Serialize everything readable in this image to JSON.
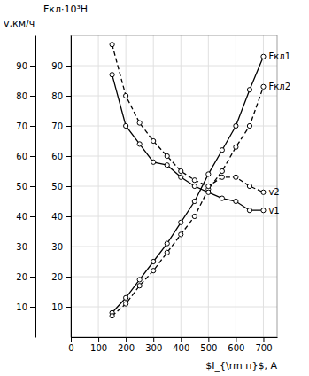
{
  "chart_data": {
    "type": "line",
    "x_label": "$I_{\\rm п}$, А",
    "y_label": "Fкл·10³H",
    "y2_label": "v,км/ч",
    "x": [
      150,
      200,
      250,
      300,
      350,
      400,
      450,
      500,
      550,
      600,
      650,
      700
    ],
    "series": [
      {
        "name": "Fкл1",
        "color": "#000000",
        "line_style": "solid",
        "marker": "circle",
        "values": [
          8,
          13,
          19,
          25,
          31,
          38,
          45,
          54,
          62,
          70,
          82,
          93
        ]
      },
      {
        "name": "Fкл2",
        "color": "#000000",
        "line_style": "dashed",
        "marker": "circle",
        "values": [
          7,
          11,
          17,
          22,
          28,
          34,
          40,
          49,
          55,
          63,
          70,
          83
        ]
      },
      {
        "name": "v1",
        "color": "#000000",
        "line_style": "solid",
        "marker": "circle",
        "axis": "y2",
        "values": [
          87,
          70,
          64,
          58,
          57,
          53,
          50,
          48,
          46,
          45,
          42,
          42
        ]
      },
      {
        "name": "v2",
        "color": "#000000",
        "line_style": "dashed",
        "marker": "circle",
        "axis": "y2",
        "values": [
          97,
          80,
          71,
          65,
          60,
          55,
          52,
          50,
          53,
          53,
          50,
          48
        ]
      }
    ],
    "xlim": [
      0,
      750
    ],
    "xticks": [
      0,
      100,
      200,
      300,
      400,
      500,
      600,
      700
    ],
    "ylim": [
      0,
      100
    ],
    "yticks": [
      10,
      20,
      30,
      40,
      50,
      60,
      70,
      80,
      90
    ],
    "y2lim": [
      0,
      100
    ],
    "y2ticks": [
      10,
      20,
      30,
      40,
      50,
      60,
      70,
      80,
      90
    ],
    "grid": true
  }
}
